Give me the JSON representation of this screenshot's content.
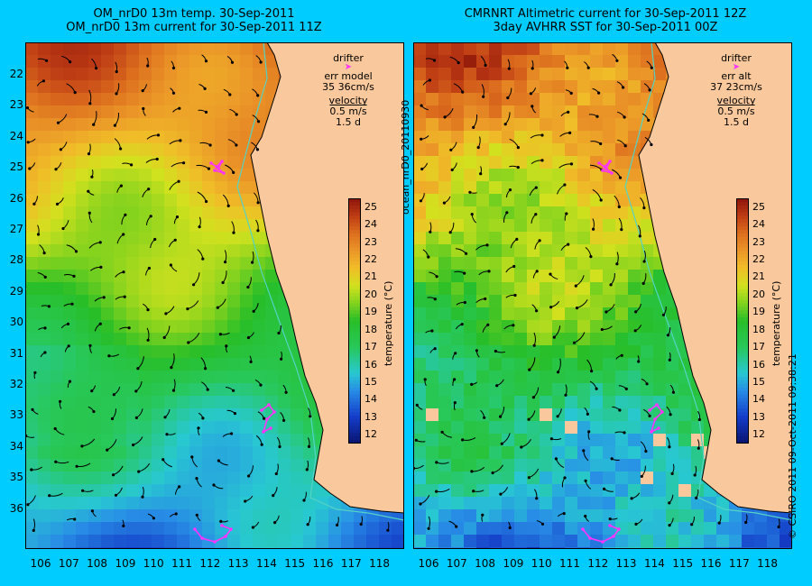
{
  "left_panel": {
    "title_line1": "OM_nrD0 13m temp. 30-Sep-2011",
    "title_line2": "OM_nrD0 13m current for 30-Sep-2011 11Z",
    "legend": {
      "drifter": "drifter",
      "err_label": "err model",
      "err_value": "35 36cm/s",
      "velocity": "velocity",
      "speed": "0.5 m/s",
      "duration": "1.5 d"
    }
  },
  "right_panel": {
    "title_line1": "CMRNRT Altimetric current for 30-Sep-2011 12Z",
    "title_line2": "3day AVHRR SST for 30-Sep-2011 00Z",
    "legend": {
      "drifter": "drifter",
      "err_label": "err alt",
      "err_value": "37 23cm/s",
      "velocity": "velocity",
      "speed": "0.5 m/s",
      "duration": "1.5 d"
    }
  },
  "side_label": "ocean_nrD0_20110930",
  "copyright": "© CSIRO 2011   09-Oct-2011 09:38:21",
  "colorbar": {
    "title": "temperature (°C)",
    "min": 11.5,
    "max": 25.5,
    "ticks": [
      "12",
      "13",
      "14",
      "15",
      "16",
      "17",
      "18",
      "19",
      "20",
      "21",
      "22",
      "23",
      "24",
      "25"
    ]
  },
  "axes": {
    "lat_labels": [
      "22",
      "23",
      "24",
      "25",
      "26",
      "27",
      "28",
      "29",
      "30",
      "31",
      "32",
      "33",
      "34",
      "35",
      "36"
    ],
    "lon_labels": [
      "106",
      "107",
      "108",
      "109",
      "110",
      "111",
      "112",
      "113",
      "114",
      "115",
      "116",
      "117",
      "118"
    ]
  },
  "colors": {
    "background": "#00ccff",
    "land": "#f9c89c",
    "coast": "#000000",
    "isobath": "#55d3c4",
    "drifter": "#ff33ff",
    "arrows": "#000000"
  }
}
